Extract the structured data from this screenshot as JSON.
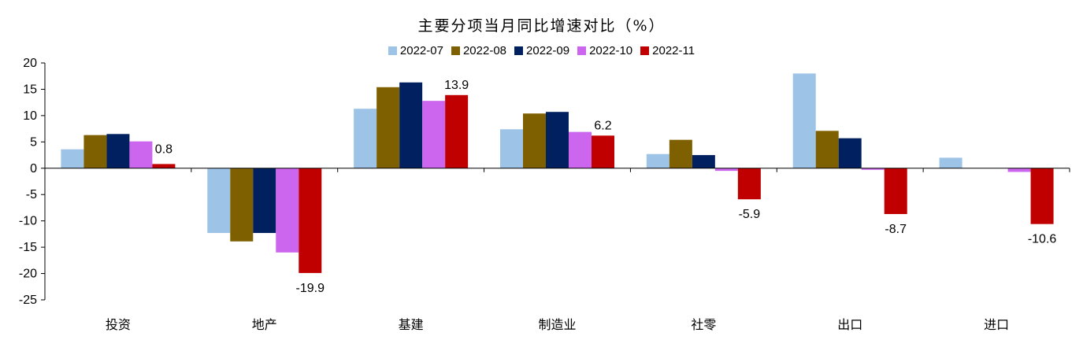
{
  "chart_data": {
    "type": "bar",
    "title": "主要分项当月同比增速对比（%）",
    "categories": [
      "投资",
      "地产",
      "基建",
      "制造业",
      "社零",
      "出口",
      "进口"
    ],
    "series": [
      {
        "name": "2022-07",
        "color": "#9DC3E6",
        "values": [
          3.6,
          -12.3,
          11.3,
          7.4,
          2.7,
          18.0,
          2.0
        ]
      },
      {
        "name": "2022-08",
        "color": "#7F6000",
        "values": [
          6.3,
          -13.9,
          15.4,
          10.4,
          5.4,
          7.1,
          0.0
        ]
      },
      {
        "name": "2022-09",
        "color": "#002060",
        "values": [
          6.5,
          -12.3,
          16.3,
          10.7,
          2.5,
          5.7,
          0.0
        ]
      },
      {
        "name": "2022-10",
        "color": "#CC66EE",
        "values": [
          5.1,
          -16.0,
          12.8,
          6.9,
          -0.5,
          -0.3,
          -0.7
        ]
      },
      {
        "name": "2022-11",
        "color": "#C00000",
        "values": [
          0.8,
          -19.9,
          13.9,
          6.2,
          -5.9,
          -8.7,
          -10.6
        ]
      }
    ],
    "data_labels": {
      "series": "2022-11",
      "values": [
        "0.8",
        "-19.9",
        "13.9",
        "6.2",
        "-5.9",
        "-8.7",
        "-10.6"
      ]
    },
    "ylim": [
      -25,
      20
    ],
    "yticks": [
      "20",
      "15",
      "10",
      "5",
      "0",
      "-5",
      "-10",
      "-15",
      "-20",
      "-25"
    ],
    "ytick_values": [
      20,
      15,
      10,
      5,
      0,
      -5,
      -10,
      -15,
      -20,
      -25
    ],
    "xlabel": "",
    "ylabel": "",
    "grid": false,
    "legend_position": "top-center"
  }
}
